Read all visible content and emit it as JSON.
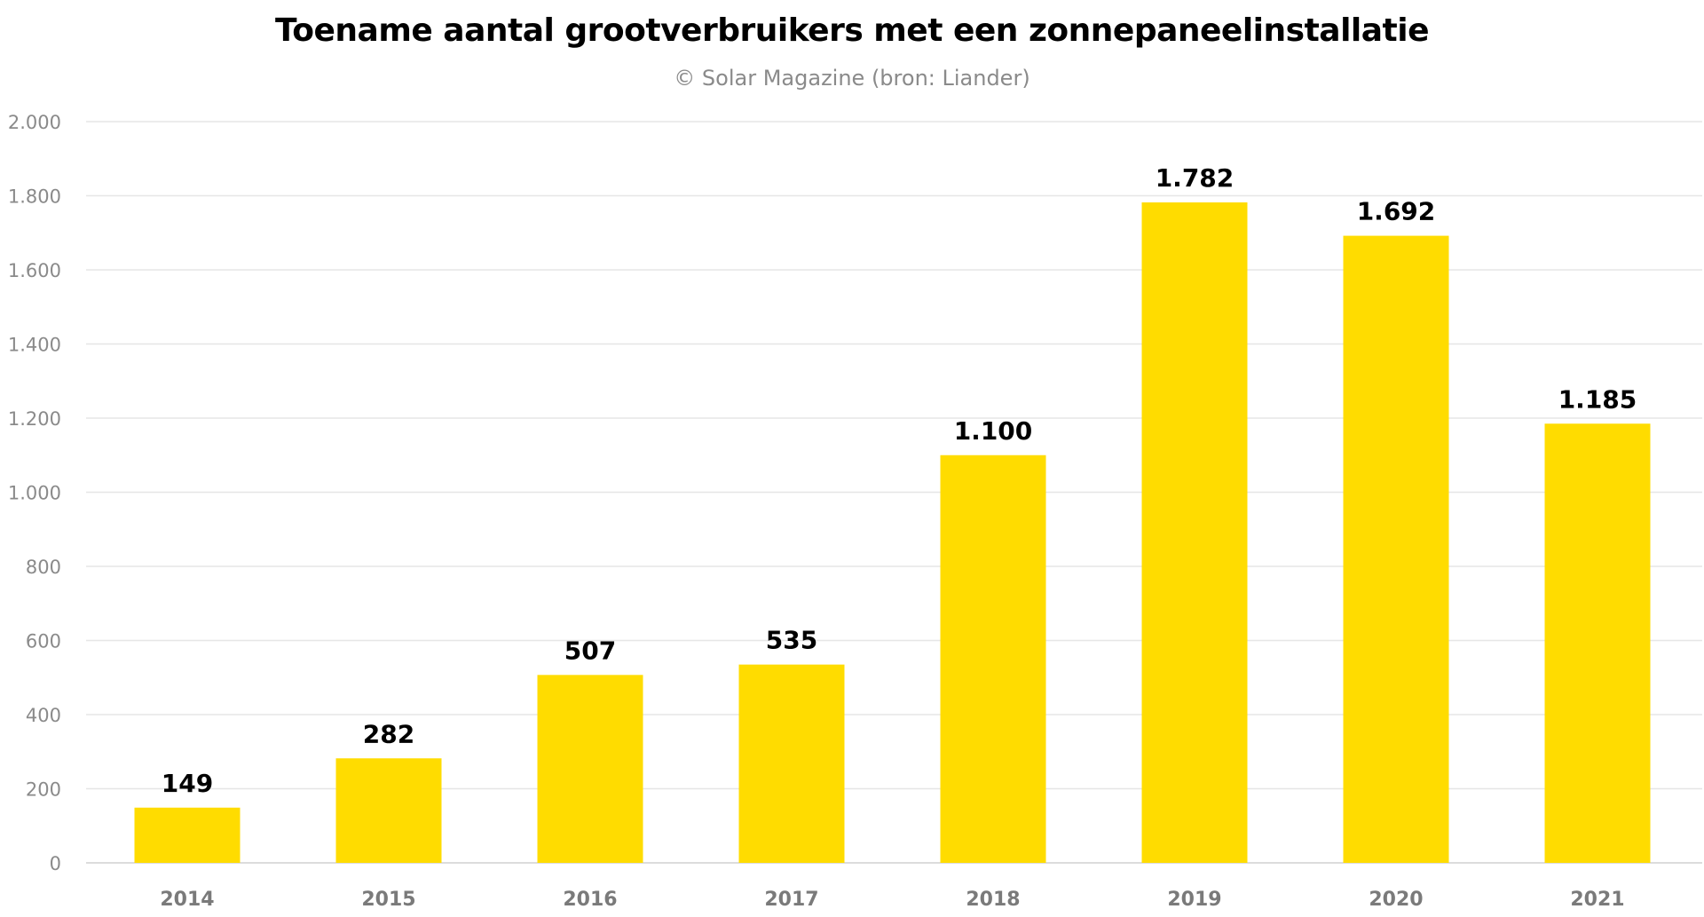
{
  "chart_data": {
    "type": "bar",
    "title": "Toename aantal grootverbruikers met een zonnepaneelinstallatie",
    "subtitle": "© Solar Magazine (bron: Liander)",
    "xlabel": "",
    "ylabel": "",
    "categories": [
      "2014",
      "2015",
      "2016",
      "2017",
      "2018",
      "2019",
      "2020",
      "2021"
    ],
    "values": [
      149,
      282,
      507,
      535,
      1100,
      1782,
      1692,
      1185
    ],
    "data_labels": [
      "149",
      "282",
      "507",
      "535",
      "1.100",
      "1.782",
      "1.692",
      "1.185"
    ],
    "ylim": [
      0,
      2000
    ],
    "yticks": [
      0,
      200,
      400,
      600,
      800,
      1000,
      1200,
      1400,
      1600,
      1800,
      2000
    ],
    "ytick_labels": [
      "0",
      "200",
      "400",
      "600",
      "800",
      "1.000",
      "1.200",
      "1.400",
      "1.600",
      "1.800",
      "2.000"
    ],
    "grid": true,
    "legend": "none",
    "bar_color": "#FFDC00",
    "grid_color": "#e6e6e6"
  }
}
